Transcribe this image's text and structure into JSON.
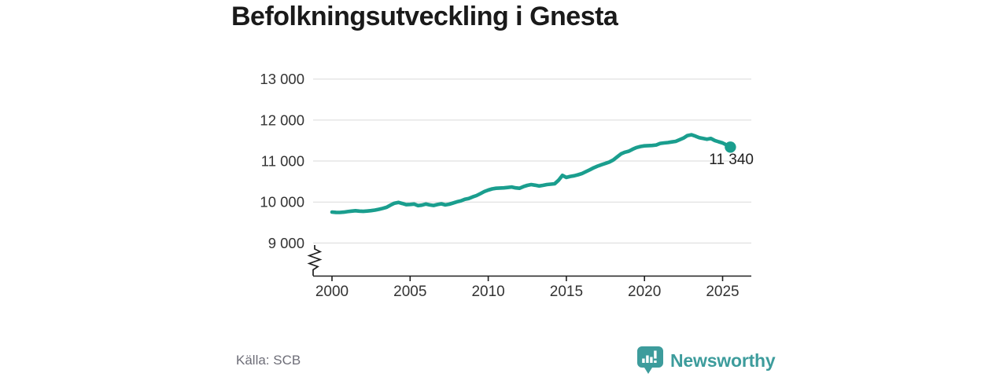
{
  "page": {
    "background": "#ffffff"
  },
  "header": {
    "title": "Befolkningsutveckling i Gnesta"
  },
  "footer": {
    "source_label": "Källa: SCB",
    "brand": {
      "name": "Newsworthy",
      "icon": "newsworthy-chart-bubble-icon",
      "color": "#3d9c9c"
    }
  },
  "chart_data": {
    "type": "line",
    "title": "Befolkningsutveckling i Gnesta",
    "xlabel": "",
    "ylabel": "",
    "x_ticks": [
      2000,
      2005,
      2010,
      2015,
      2020,
      2025
    ],
    "y_ticks": [
      {
        "value": 13000,
        "label": "13 000"
      },
      {
        "value": 12000,
        "label": "12 000"
      },
      {
        "value": 11000,
        "label": "11 000"
      },
      {
        "value": 10000,
        "label": "10 000"
      },
      {
        "value": 9000,
        "label": "9 000"
      }
    ],
    "ylim": [
      8200,
      13000
    ],
    "xlim": [
      2000,
      2026.8
    ],
    "axis_break": true,
    "grid": "horizontal",
    "gridline_color": "#d9d9d9",
    "axis_color": "#1f1f1f",
    "tick_label_color": "#333333",
    "line_color": "#1a9e8e",
    "end_label": "11 340",
    "end_value": 11340,
    "series": [
      {
        "name": "Befolkning",
        "color": "#1a9e8e",
        "points": [
          [
            2000,
            9755
          ],
          [
            2000.25,
            9748
          ],
          [
            2000.5,
            9745
          ],
          [
            2000.75,
            9753
          ],
          [
            2001,
            9766
          ],
          [
            2001.25,
            9778
          ],
          [
            2001.5,
            9787
          ],
          [
            2001.75,
            9779
          ],
          [
            2002,
            9772
          ],
          [
            2002.25,
            9781
          ],
          [
            2002.5,
            9790
          ],
          [
            2002.75,
            9803
          ],
          [
            2003,
            9822
          ],
          [
            2003.25,
            9846
          ],
          [
            2003.5,
            9872
          ],
          [
            2003.75,
            9926
          ],
          [
            2004,
            9972
          ],
          [
            2004.25,
            9991
          ],
          [
            2004.5,
            9964
          ],
          [
            2004.75,
            9936
          ],
          [
            2005,
            9941
          ],
          [
            2005.25,
            9951
          ],
          [
            2005.5,
            9912
          ],
          [
            2005.75,
            9924
          ],
          [
            2006,
            9951
          ],
          [
            2006.25,
            9929
          ],
          [
            2006.5,
            9916
          ],
          [
            2006.75,
            9939
          ],
          [
            2007,
            9957
          ],
          [
            2007.25,
            9929
          ],
          [
            2007.5,
            9946
          ],
          [
            2007.75,
            9976
          ],
          [
            2008,
            10006
          ],
          [
            2008.25,
            10027
          ],
          [
            2008.5,
            10066
          ],
          [
            2008.75,
            10087
          ],
          [
            2009,
            10126
          ],
          [
            2009.25,
            10157
          ],
          [
            2009.5,
            10206
          ],
          [
            2009.75,
            10256
          ],
          [
            2010,
            10291
          ],
          [
            2010.25,
            10321
          ],
          [
            2010.5,
            10336
          ],
          [
            2010.75,
            10341
          ],
          [
            2011,
            10346
          ],
          [
            2011.25,
            10356
          ],
          [
            2011.5,
            10366
          ],
          [
            2011.75,
            10346
          ],
          [
            2012,
            10336
          ],
          [
            2012.25,
            10376
          ],
          [
            2012.5,
            10406
          ],
          [
            2012.75,
            10426
          ],
          [
            2013,
            10411
          ],
          [
            2013.25,
            10391
          ],
          [
            2013.5,
            10406
          ],
          [
            2013.75,
            10426
          ],
          [
            2014,
            10436
          ],
          [
            2014.25,
            10446
          ],
          [
            2014.5,
            10531
          ],
          [
            2014.75,
            10651
          ],
          [
            2015,
            10601
          ],
          [
            2015.25,
            10626
          ],
          [
            2015.5,
            10641
          ],
          [
            2015.75,
            10666
          ],
          [
            2016,
            10696
          ],
          [
            2016.25,
            10741
          ],
          [
            2016.5,
            10786
          ],
          [
            2016.75,
            10836
          ],
          [
            2017,
            10876
          ],
          [
            2017.25,
            10911
          ],
          [
            2017.5,
            10941
          ],
          [
            2017.75,
            10976
          ],
          [
            2018,
            11026
          ],
          [
            2018.25,
            11101
          ],
          [
            2018.5,
            11176
          ],
          [
            2018.75,
            11216
          ],
          [
            2019,
            11241
          ],
          [
            2019.25,
            11291
          ],
          [
            2019.5,
            11331
          ],
          [
            2019.75,
            11356
          ],
          [
            2020,
            11371
          ],
          [
            2020.25,
            11376
          ],
          [
            2020.5,
            11381
          ],
          [
            2020.75,
            11391
          ],
          [
            2021,
            11431
          ],
          [
            2021.25,
            11441
          ],
          [
            2021.5,
            11451
          ],
          [
            2021.75,
            11466
          ],
          [
            2022,
            11481
          ],
          [
            2022.25,
            11521
          ],
          [
            2022.5,
            11561
          ],
          [
            2022.75,
            11621
          ],
          [
            2023,
            11641
          ],
          [
            2023.25,
            11611
          ],
          [
            2023.5,
            11571
          ],
          [
            2023.75,
            11551
          ],
          [
            2024,
            11531
          ],
          [
            2024.25,
            11551
          ],
          [
            2024.5,
            11501
          ],
          [
            2024.75,
            11471
          ],
          [
            2025,
            11441
          ],
          [
            2025.25,
            11391
          ],
          [
            2025.5,
            11340
          ]
        ]
      }
    ]
  }
}
